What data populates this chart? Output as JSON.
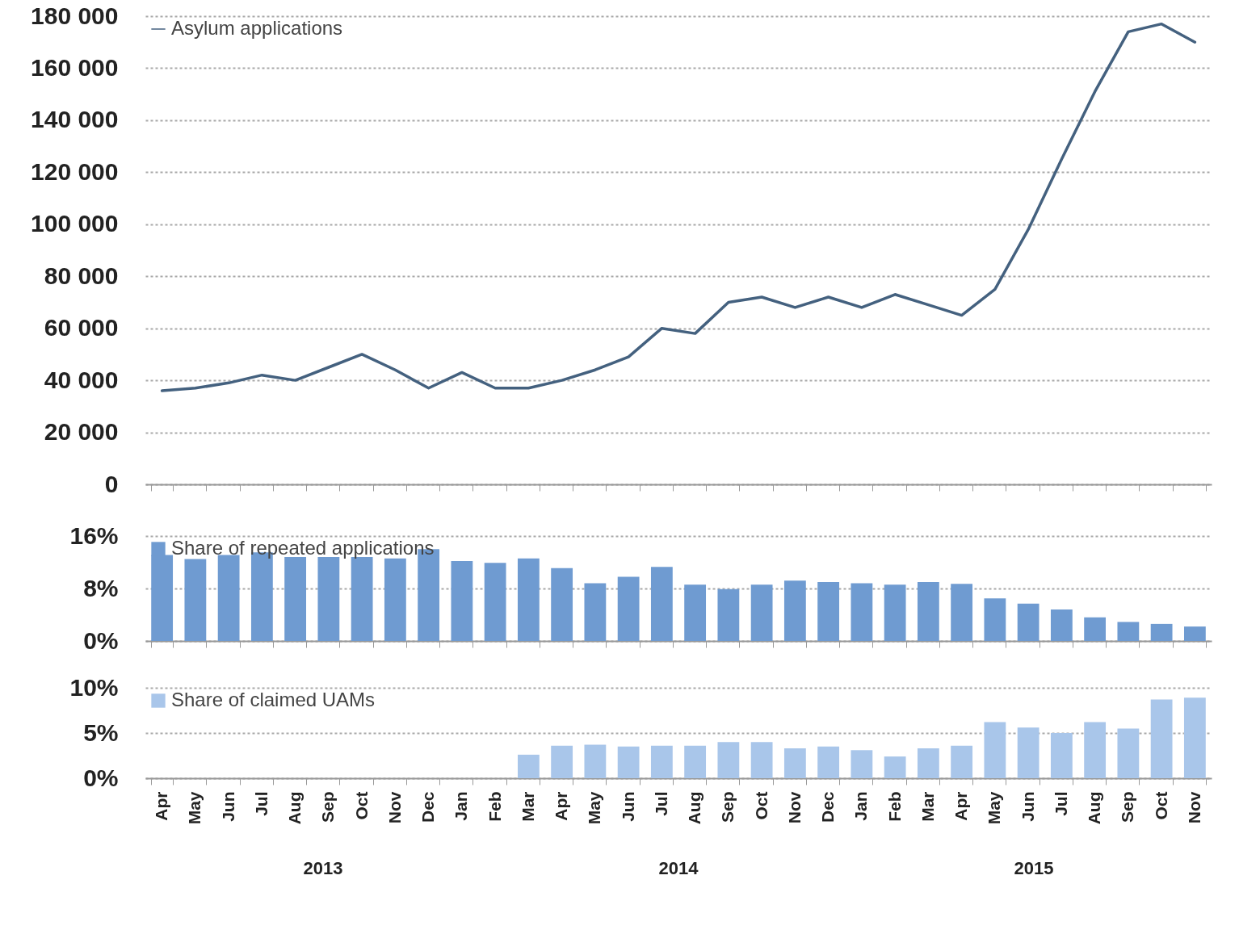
{
  "chart_data": [
    {
      "type": "line",
      "series": [
        {
          "name": "Asylum applications",
          "color": "#44617f",
          "values": [
            36000,
            37000,
            39000,
            42000,
            40000,
            45000,
            50000,
            44000,
            37000,
            43000,
            37000,
            37000,
            40000,
            44000,
            49000,
            60000,
            58000,
            70000,
            72000,
            68000,
            72000,
            68000,
            73000,
            69000,
            65000,
            75000,
            98000,
            125000,
            151000,
            174000,
            177000,
            170000
          ]
        }
      ],
      "ylim": [
        0,
        180000
      ],
      "yticks": [
        {
          "value": 0,
          "label": "0"
        },
        {
          "value": 20000,
          "label": "20 000"
        },
        {
          "value": 40000,
          "label": "40 000"
        },
        {
          "value": 60000,
          "label": "60 000"
        },
        {
          "value": 80000,
          "label": "80 000"
        },
        {
          "value": 100000,
          "label": "100 000"
        },
        {
          "value": 120000,
          "label": "120 000"
        },
        {
          "value": 140000,
          "label": "140 000"
        },
        {
          "value": 160000,
          "label": "160 000"
        },
        {
          "value": 180000,
          "label": "180 000"
        }
      ],
      "grid": "y",
      "legend": "top left",
      "tick_labels": "y"
    },
    {
      "type": "bar",
      "series": [
        {
          "name": "Share of repeated applications",
          "color": "#6f9bd1",
          "values": [
            13.1,
            12.5,
            13.1,
            13.5,
            12.8,
            12.8,
            12.8,
            12.6,
            14.0,
            12.2,
            11.9,
            12.6,
            11.1,
            8.8,
            9.8,
            11.3,
            8.6,
            7.9,
            8.6,
            9.2,
            9.0,
            8.8,
            8.6,
            9.0,
            8.7,
            6.5,
            5.7,
            4.8,
            3.6,
            2.9,
            2.6,
            2.2
          ]
        }
      ],
      "ylim": [
        0,
        16
      ],
      "yticks": [
        {
          "value": 0,
          "label": "0%"
        },
        {
          "value": 8,
          "label": "8%"
        },
        {
          "value": 16,
          "label": "16%"
        }
      ],
      "grid": "y",
      "legend": "top left",
      "tick_labels": "y"
    },
    {
      "type": "bar",
      "categories": [
        "Apr",
        "May",
        "Jun",
        "Jul",
        "Aug",
        "Sep",
        "Oct",
        "Nov",
        "Dec",
        "Jan",
        "Feb",
        "Mar",
        "Apr",
        "May",
        "Jun",
        "Jul",
        "Aug",
        "Sep",
        "Oct",
        "Nov",
        "Dec",
        "Jan",
        "Feb",
        "Mar",
        "Apr",
        "May",
        "Jun",
        "Jul",
        "Aug",
        "Sep",
        "Oct",
        "Nov"
      ],
      "series": [
        {
          "name": "Share of claimed UAMs",
          "color": "#a9c6ea",
          "values": [
            null,
            null,
            null,
            null,
            null,
            null,
            null,
            null,
            null,
            null,
            null,
            2.6,
            3.6,
            3.7,
            3.5,
            3.6,
            3.6,
            4.0,
            4.0,
            3.3,
            3.5,
            3.1,
            2.4,
            3.3,
            3.6,
            6.2,
            5.6,
            5.0,
            6.2,
            5.5,
            8.7,
            8.9
          ]
        }
      ],
      "ylim": [
        0,
        10
      ],
      "yticks": [
        {
          "value": 0,
          "label": "0%"
        },
        {
          "value": 5,
          "label": "5%"
        },
        {
          "value": 10,
          "label": "10%"
        }
      ],
      "grid": "y",
      "legend": "top left",
      "annotations": [
        "2013",
        "2014",
        "2015"
      ]
    }
  ]
}
